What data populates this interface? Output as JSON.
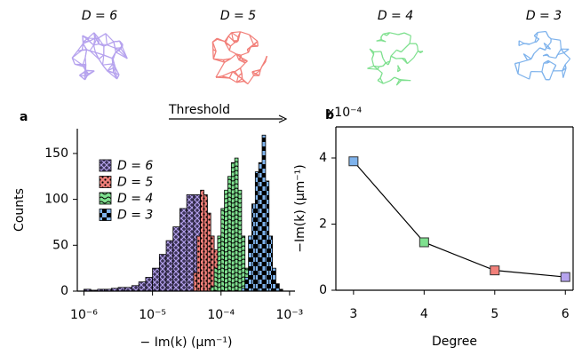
{
  "header": {
    "networks": [
      {
        "label": "D = 6",
        "color": "#b6a3ee"
      },
      {
        "label": "D = 5",
        "color": "#f2807a"
      },
      {
        "label": "D = 4",
        "color": "#7fe08f"
      },
      {
        "label": "D = 3",
        "color": "#7fb3ec"
      }
    ]
  },
  "chart_data": [
    {
      "type": "histogram",
      "panel_label": "a",
      "x_label": "− Im(k) (μm⁻¹)",
      "y_label": "Counts",
      "annotation": "Threshold",
      "x_log": true,
      "xlim": [
        8e-07,
        0.0012
      ],
      "ylim": [
        0,
        177
      ],
      "xticks": [
        {
          "value": 1e-06,
          "label": "10⁻⁶"
        },
        {
          "value": 1e-05,
          "label": "10⁻⁵"
        },
        {
          "value": 0.0001,
          "label": "10⁻⁴"
        },
        {
          "value": 0.001,
          "label": "10⁻³"
        }
      ],
      "yticks": [
        0,
        50,
        100,
        150
      ],
      "legend": "upper left",
      "series": [
        {
          "name": "D = 6",
          "color": "#b6a3ee",
          "hatch": "crosshatch",
          "bins": [
            1e-06,
            1.259e-06,
            1.585e-06,
            1.995e-06,
            2.512e-06,
            3.162e-06,
            3.981e-06,
            5.012e-06,
            6.31e-06,
            7.943e-06,
            1e-05,
            1.259e-05,
            1.585e-05,
            1.995e-05,
            2.512e-05,
            3.162e-05,
            3.981e-05,
            5.012e-05,
            6.31e-05,
            7.943e-05
          ],
          "values": [
            2,
            1,
            2,
            2,
            3,
            4,
            4,
            6,
            10,
            15,
            25,
            40,
            55,
            70,
            90,
            105,
            105,
            100,
            60
          ]
        },
        {
          "name": "D = 5",
          "color": "#f2807a",
          "hatch": "dots",
          "bins": [
            3.981e-05,
            4.467e-05,
            5.012e-05,
            5.623e-05,
            6.31e-05,
            7.079e-05,
            7.943e-05,
            8.913e-05,
            0.0001,
            0.0001122,
            0.0001259,
            0.0001413
          ],
          "values": [
            20,
            60,
            110,
            105,
            85,
            60,
            45,
            30,
            15,
            8,
            3
          ]
        },
        {
          "name": "D = 4",
          "color": "#7fe08f",
          "hatch": "waves",
          "bins": [
            7.079e-05,
            7.943e-05,
            8.913e-05,
            0.0001,
            0.0001122,
            0.0001259,
            0.0001413,
            0.0001585,
            0.0001778,
            0.0001995,
            0.0002239,
            0.0002512,
            0.0002818,
            0.0003162
          ],
          "values": [
            5,
            25,
            60,
            90,
            110,
            125,
            140,
            145,
            110,
            60,
            25,
            10,
            3
          ]
        },
        {
          "name": "D = 3",
          "color": "#7fb3ec",
          "hatch": "checker",
          "bins": [
            0.0001995,
            0.0002239,
            0.0002512,
            0.0002818,
            0.0003162,
            0.0003548,
            0.0003981,
            0.0004467,
            0.0005012,
            0.0005623,
            0.000631,
            0.0007079,
            0.0007943
          ],
          "values": [
            3,
            15,
            60,
            95,
            130,
            140,
            170,
            120,
            60,
            25,
            8,
            2
          ]
        }
      ]
    },
    {
      "type": "line",
      "panel_label": "b",
      "x_label": "Degree",
      "y_label": "−Im(k) (μm⁻¹)",
      "y_multiplier": "x10⁻⁴",
      "xlim": [
        2.75,
        6.11
      ],
      "ylim": [
        0,
        4.94
      ],
      "xticks": [
        3,
        4,
        5,
        6
      ],
      "yticks": [
        0,
        2,
        4
      ],
      "x": [
        3,
        4,
        5,
        6
      ],
      "values": [
        3.9,
        1.45,
        0.6,
        0.4
      ],
      "color": "#000000",
      "point_colors": [
        "#7fb3ec",
        "#7fe08f",
        "#f2807a",
        "#b6a3ee"
      ]
    }
  ]
}
